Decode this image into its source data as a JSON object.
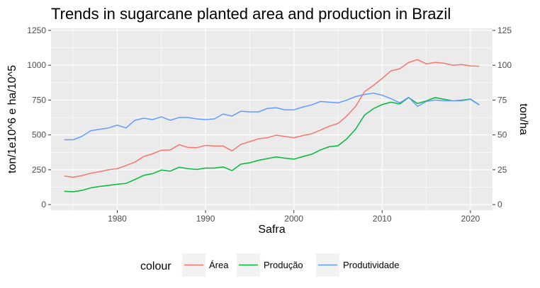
{
  "chart_data": {
    "type": "line",
    "title": "Trends in sugarcane planted area and production in Brazil",
    "xlabel": "Safra",
    "ylabel_left": "ton/1e10^6 e ha/10^5",
    "ylabel_right": "ton/ha",
    "xlim": [
      1972.5,
      2022.5
    ],
    "ylim_left": [
      -40,
      1265
    ],
    "ylim_right": [
      -4,
      126.5
    ],
    "x_ticks": [
      1980,
      1990,
      2000,
      2010,
      2020
    ],
    "x_tick_labels": [
      "1980",
      "1990",
      "2000",
      "2010",
      "2020"
    ],
    "y_left_ticks": [
      0,
      250,
      500,
      750,
      1000,
      1250
    ],
    "y_left_tick_labels": [
      "0",
      "250",
      "500",
      "750",
      "1000",
      "1250"
    ],
    "y_right_ticks": [
      0,
      25,
      50,
      75,
      100,
      125
    ],
    "y_right_tick_labels": [
      "0",
      "25",
      "50",
      "75",
      "100",
      "125"
    ],
    "grid": true,
    "legend": {
      "title": "colour",
      "position": "bottom",
      "entries": [
        "Área",
        "Produção",
        "Produtividade"
      ]
    },
    "colors": {
      "Área": "#F8766D",
      "Produção": "#00BA38",
      "Produtividade": "#619CFF",
      "panel": "#EBEBEB",
      "grid": "#FFFFFF"
    },
    "x": [
      1974,
      1975,
      1976,
      1977,
      1978,
      1979,
      1980,
      1981,
      1982,
      1983,
      1984,
      1985,
      1986,
      1987,
      1988,
      1989,
      1990,
      1991,
      1992,
      1993,
      1994,
      1995,
      1996,
      1997,
      1998,
      1999,
      2000,
      2001,
      2002,
      2003,
      2004,
      2005,
      2006,
      2007,
      2008,
      2009,
      2010,
      2011,
      2012,
      2013,
      2014,
      2015,
      2016,
      2017,
      2018,
      2019,
      2020,
      2021
    ],
    "series": [
      {
        "name": "Área",
        "axis": "left",
        "values": [
          205,
          196,
          208,
          225,
          236,
          250,
          258,
          280,
          305,
          345,
          365,
          390,
          392,
          430,
          410,
          408,
          425,
          420,
          420,
          385,
          432,
          452,
          472,
          480,
          498,
          489,
          480,
          495,
          508,
          534,
          562,
          582,
          636,
          705,
          810,
          855,
          905,
          960,
          975,
          1020,
          1040,
          1010,
          1020,
          1015,
          1000,
          1005,
          995,
          993
        ]
      },
      {
        "name": "Produção",
        "axis": "left",
        "values": [
          95,
          92,
          102,
          120,
          130,
          138,
          146,
          152,
          180,
          210,
          222,
          248,
          240,
          268,
          258,
          252,
          262,
          262,
          270,
          244,
          290,
          300,
          318,
          330,
          342,
          333,
          326,
          344,
          361,
          392,
          415,
          422,
          472,
          542,
          642,
          688,
          718,
          735,
          722,
          768,
          725,
          744,
          768,
          756,
          745,
          749,
          757,
          716
        ]
      },
      {
        "name": "Produtividade",
        "axis": "right",
        "values": [
          46.5,
          46.5,
          49,
          53,
          54,
          55,
          57,
          55,
          60.5,
          62,
          61,
          63,
          60.5,
          62.5,
          62.5,
          61.5,
          61,
          61.5,
          65,
          63.5,
          67,
          66.5,
          66.5,
          69,
          69.5,
          68,
          68,
          70,
          71.5,
          74,
          73.5,
          73,
          75,
          77.5,
          79,
          80,
          78.5,
          76,
          73,
          77,
          70.5,
          74,
          75,
          74.5,
          74.5,
          74.5,
          75.5,
          71.5
        ]
      }
    ]
  }
}
